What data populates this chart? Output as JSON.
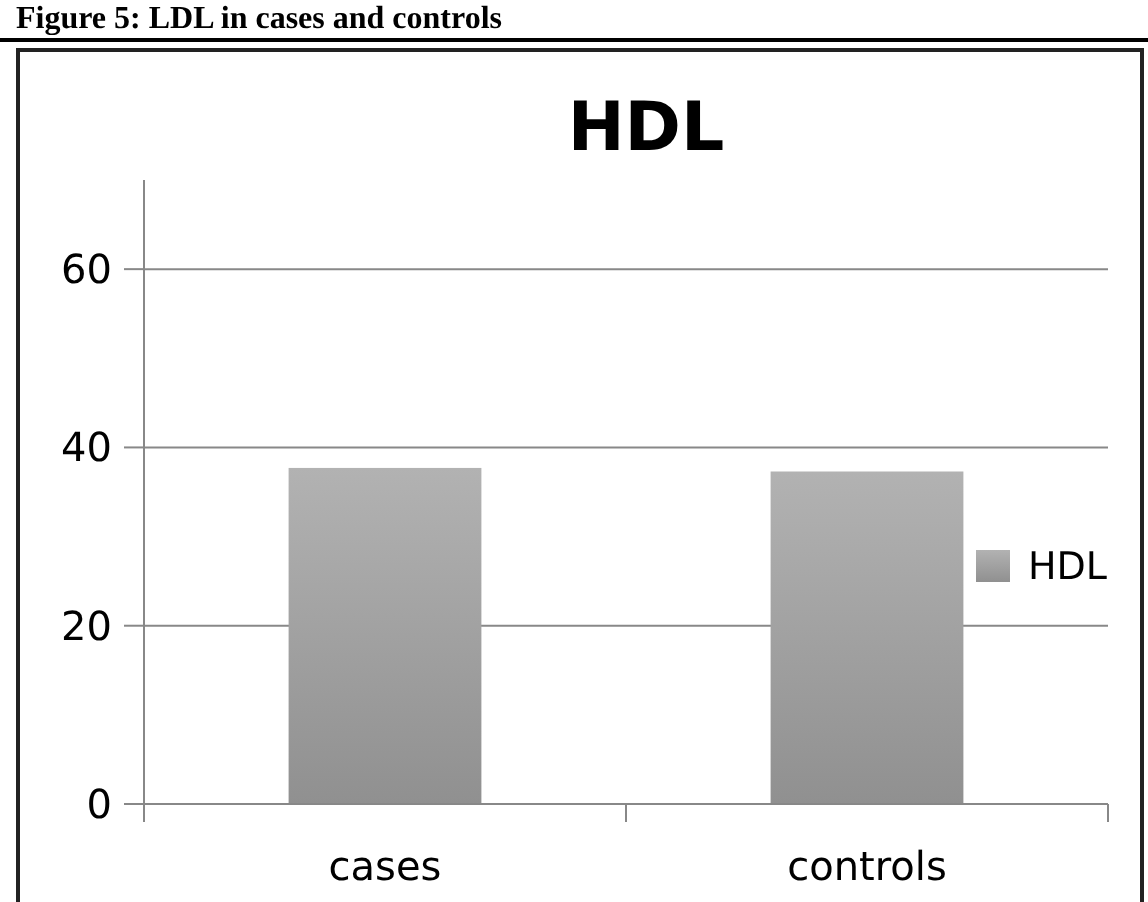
{
  "chart_data": {
    "type": "bar",
    "title": "HDL",
    "categories": [
      "cases",
      "controls"
    ],
    "series": [
      {
        "name": "HDL",
        "color": "#a0a0a0",
        "values": [
          37.7,
          37.3
        ]
      }
    ],
    "ylim": [
      0,
      70
    ],
    "yticks": [
      0,
      20,
      40,
      60
    ],
    "grid": "y",
    "legend": "right",
    "annotations": [
      "Figure 5: LDL in cases and controls"
    ]
  }
}
